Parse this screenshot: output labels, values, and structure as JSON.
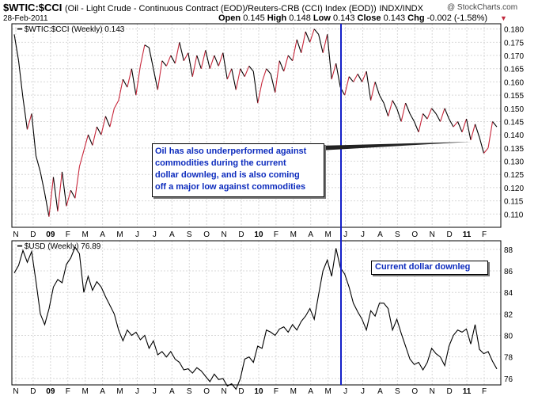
{
  "header": {
    "symbol": "$WTIC:$CCI",
    "description": "(Oil - Light Crude - Continuous Contract (EOD)/Reuters-CRB (CCI) Index (EOD))",
    "exchange": "INDX/INDX",
    "brand": "@ StockCharts.com",
    "date": "28-Feb-2011",
    "open_label": "Open",
    "open": "0.145",
    "high_label": "High",
    "high": "0.148",
    "low_label": "Low",
    "low": "0.143",
    "close_label": "Close",
    "close": "0.143",
    "chg_label": "Chg",
    "chg": "-0.002 (-1.58%)",
    "chg_arrow": "▼"
  },
  "colors": {
    "ratio_up": "#c8283c",
    "ratio_down": "#000000",
    "vline": "#1420c8",
    "note_text": "#0c2bbd"
  },
  "chart_data": [
    {
      "type": "line",
      "legend": "$WTIC:$CCI (Weekly) 0.143",
      "ylim": [
        0.105,
        0.182
      ],
      "yticks": [
        "0.180",
        "0.175",
        "0.170",
        "0.165",
        "0.160",
        "0.155",
        "0.150",
        "0.145",
        "0.140",
        "0.135",
        "0.130",
        "0.125",
        "0.120",
        "0.115",
        "0.110"
      ],
      "grid": true,
      "x": [
        "2008-11",
        "2008-11",
        "2008-11",
        "2008-11",
        "2008-12",
        "2008-12",
        "2008-12",
        "2008-12",
        "2009-01",
        "2009-01",
        "2009-01",
        "2009-01",
        "2009-02",
        "2009-02",
        "2009-02",
        "2009-02",
        "2009-03",
        "2009-03",
        "2009-03",
        "2009-03",
        "2009-04",
        "2009-04",
        "2009-04",
        "2009-04",
        "2009-05",
        "2009-05",
        "2009-05",
        "2009-05",
        "2009-06",
        "2009-06",
        "2009-06",
        "2009-06",
        "2009-07",
        "2009-07",
        "2009-07",
        "2009-07",
        "2009-08",
        "2009-08",
        "2009-08",
        "2009-08",
        "2009-09",
        "2009-09",
        "2009-09",
        "2009-09",
        "2009-10",
        "2009-10",
        "2009-10",
        "2009-10",
        "2009-11",
        "2009-11",
        "2009-11",
        "2009-11",
        "2009-12",
        "2009-12",
        "2009-12",
        "2009-12",
        "2010-01",
        "2010-01",
        "2010-01",
        "2010-01",
        "2010-02",
        "2010-02",
        "2010-02",
        "2010-02",
        "2010-03",
        "2010-03",
        "2010-03",
        "2010-03",
        "2010-04",
        "2010-04",
        "2010-04",
        "2010-04",
        "2010-05",
        "2010-05",
        "2010-05",
        "2010-05",
        "2010-06",
        "2010-06",
        "2010-06",
        "2010-06",
        "2010-07",
        "2010-07",
        "2010-07",
        "2010-07",
        "2010-08",
        "2010-08",
        "2010-08",
        "2010-08",
        "2010-09",
        "2010-09",
        "2010-09",
        "2010-09",
        "2010-10",
        "2010-10",
        "2010-10",
        "2010-10",
        "2010-11",
        "2010-11",
        "2010-11",
        "2010-11",
        "2010-12",
        "2010-12",
        "2010-12",
        "2010-12",
        "2011-01",
        "2011-01",
        "2011-01",
        "2011-01",
        "2011-02",
        "2011-02",
        "2011-02",
        "2011-02"
      ],
      "values": [
        0.178,
        0.168,
        0.154,
        0.142,
        0.148,
        0.132,
        0.126,
        0.118,
        0.109,
        0.124,
        0.111,
        0.126,
        0.113,
        0.119,
        0.116,
        0.128,
        0.134,
        0.14,
        0.136,
        0.143,
        0.14,
        0.147,
        0.143,
        0.15,
        0.153,
        0.161,
        0.158,
        0.165,
        0.155,
        0.166,
        0.174,
        0.173,
        0.165,
        0.157,
        0.168,
        0.166,
        0.17,
        0.167,
        0.175,
        0.168,
        0.171,
        0.162,
        0.17,
        0.165,
        0.172,
        0.165,
        0.17,
        0.166,
        0.171,
        0.161,
        0.165,
        0.157,
        0.165,
        0.162,
        0.166,
        0.164,
        0.152,
        0.16,
        0.165,
        0.163,
        0.156,
        0.168,
        0.164,
        0.17,
        0.168,
        0.176,
        0.171,
        0.179,
        0.175,
        0.18,
        0.178,
        0.171,
        0.178,
        0.161,
        0.167,
        0.158,
        0.155,
        0.162,
        0.16,
        0.163,
        0.16,
        0.164,
        0.153,
        0.16,
        0.155,
        0.152,
        0.147,
        0.153,
        0.15,
        0.145,
        0.152,
        0.148,
        0.145,
        0.141,
        0.148,
        0.146,
        0.15,
        0.148,
        0.145,
        0.15,
        0.146,
        0.143,
        0.145,
        0.141,
        0.146,
        0.138,
        0.144,
        0.139,
        0.133,
        0.135,
        0.145,
        0.143
      ]
    },
    {
      "type": "line",
      "legend": "$USD (Weekly) 76.89",
      "ylim": [
        75.4,
        88.8
      ],
      "yticks": [
        "88",
        "86",
        "84",
        "82",
        "80",
        "78",
        "76"
      ],
      "grid": true,
      "values": [
        85.8,
        86.5,
        87.9,
        86.8,
        87.8,
        85.0,
        82.0,
        81.0,
        82.5,
        84.5,
        85.2,
        84.9,
        86.6,
        87.2,
        88.2,
        87.6,
        84.0,
        85.5,
        84.2,
        85.0,
        84.5,
        83.6,
        82.8,
        82.0,
        80.5,
        79.5,
        80.5,
        80.0,
        80.3,
        79.6,
        80.0,
        78.8,
        79.5,
        78.2,
        78.5,
        78.0,
        78.5,
        77.8,
        77.5,
        76.8,
        76.9,
        76.5,
        77.0,
        76.7,
        76.2,
        75.7,
        76.4,
        75.9,
        76.0,
        75.3,
        75.5,
        75.0,
        76.0,
        77.8,
        78.0,
        77.5,
        79.0,
        78.8,
        80.5,
        80.3,
        80.0,
        80.6,
        80.8,
        80.3,
        81.0,
        80.5,
        81.3,
        81.8,
        82.5,
        81.5,
        83.8,
        86.0,
        87.0,
        85.5,
        88.1,
        86.3,
        85.7,
        84.5,
        83.0,
        82.2,
        81.5,
        80.5,
        82.3,
        81.8,
        83.0,
        83.0,
        82.5,
        80.5,
        81.5,
        80.2,
        79.0,
        77.8,
        77.3,
        77.5,
        76.8,
        77.5,
        78.8,
        78.3,
        78.0,
        77.2,
        79.0,
        80.0,
        80.5,
        80.3,
        80.6,
        79.2,
        81.0,
        78.7,
        78.3,
        78.5,
        77.6,
        76.89
      ]
    }
  ],
  "x_axis": {
    "labels": [
      "N",
      "D",
      "09",
      "F",
      "M",
      "A",
      "M",
      "J",
      "J",
      "A",
      "S",
      "O",
      "N",
      "D",
      "10",
      "F",
      "M",
      "A",
      "M",
      "J",
      "J",
      "A",
      "S",
      "O",
      "N",
      "D",
      "11",
      "F"
    ],
    "bold": [
      "09",
      "10",
      "11"
    ]
  },
  "annotations": {
    "note1": [
      "Oil has also underperformed against",
      "commodities during the current",
      "dollar downleg, and is also coming",
      "off a major low against commodities"
    ],
    "note2": "Current dollar downleg",
    "vline_date": "2010-06"
  }
}
